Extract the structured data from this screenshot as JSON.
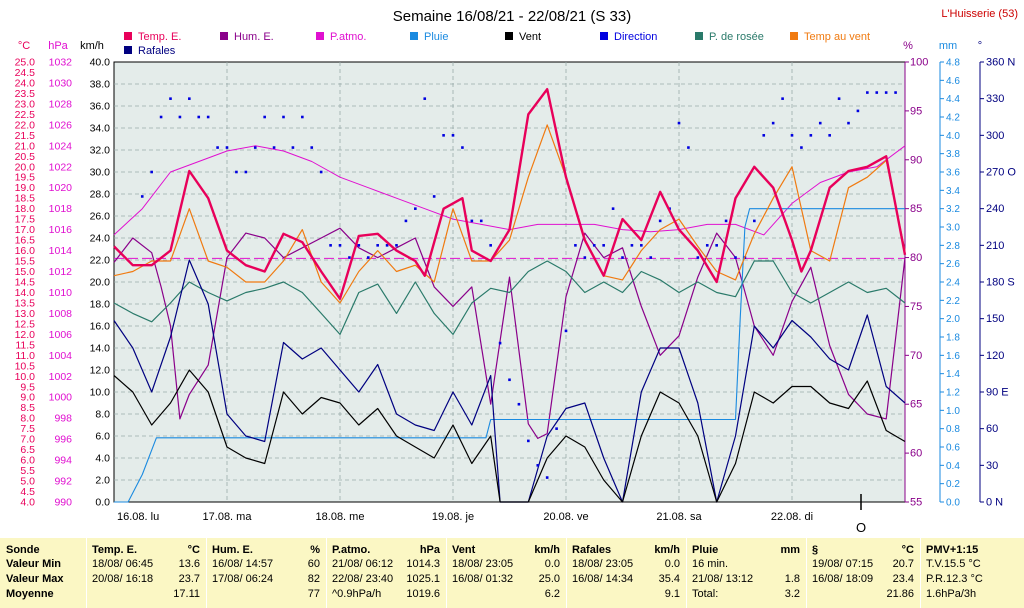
{
  "chart_data": {
    "type": "line",
    "title": "Semaine 16/08/21 - 22/08/21 (S 33)",
    "station": "L'Huisserie (53)",
    "legend": [
      {
        "name": "Temp. E.",
        "color": "#e8005a"
      },
      {
        "name": "Hum. E.",
        "color": "#8a008a"
      },
      {
        "name": "P.atmo.",
        "color": "#e010d0"
      },
      {
        "name": "Pluie",
        "color": "#1a8ae0"
      },
      {
        "name": "Vent",
        "color": "#000000"
      },
      {
        "name": "Direction",
        "color": "#0000e0"
      },
      {
        "name": "P. de rosée",
        "color": "#2a7a6a"
      },
      {
        "name": "Temp au vent",
        "color": "#f07a10"
      },
      {
        "name": "Rafales",
        "color": "#000080"
      }
    ],
    "axes": {
      "temp": {
        "unit": "°C",
        "min": 4.0,
        "max": 25.0,
        "step": 0.5,
        "color": "#e8005a",
        "ticks": [
          "25.0",
          "24.5",
          "24.0",
          "23.5",
          "23.0",
          "22.5",
          "22.0",
          "21.5",
          "21.0",
          "20.5",
          "20.0",
          "19.5",
          "19.0",
          "18.5",
          "18.0",
          "17.5",
          "17.0",
          "16.5",
          "16.0",
          "15.5",
          "15.0",
          "14.5",
          "14.0",
          "13.5",
          "13.0",
          "12.5",
          "12.0",
          "11.5",
          "11.0",
          "10.5",
          "10.0",
          "9.5",
          "9.0",
          "8.5",
          "8.0",
          "7.5",
          "7.0",
          "6.5",
          "6.0",
          "5.5",
          "5.0",
          "4.5",
          "4.0"
        ]
      },
      "pressure": {
        "unit": "hPa",
        "min": 990,
        "max": 1032,
        "color": "#e010d0",
        "ticks": [
          "1032",
          "1030",
          "1028",
          "1026",
          "1024",
          "1022",
          "1020",
          "1018",
          "1016",
          "1014",
          "1012",
          "1010",
          "1008",
          "1006",
          "1004",
          "1002",
          "1000",
          "998",
          "996",
          "994",
          "992",
          "990"
        ]
      },
      "wind": {
        "unit": "km/h",
        "min": 0,
        "max": 40,
        "color": "#000000",
        "ticks": [
          "40.0",
          "38.0",
          "36.0",
          "34.0",
          "32.0",
          "30.0",
          "28.0",
          "26.0",
          "24.0",
          "22.0",
          "20.0",
          "18.0",
          "16.0",
          "14.0",
          "12.0",
          "10.0",
          "8.0",
          "6.0",
          "4.0",
          "2.0",
          "0.0"
        ]
      },
      "humidity": {
        "unit": "%",
        "min": 55,
        "max": 100,
        "color": "#8a008a",
        "ticks": [
          "100",
          "95",
          "90",
          "85",
          "80",
          "75",
          "70",
          "65",
          "60",
          "55"
        ]
      },
      "rain": {
        "unit": "mm",
        "min": 0,
        "max": 4.8,
        "color": "#1a8ae0",
        "ticks": [
          "4.8",
          "4.6",
          "4.4",
          "4.2",
          "4.0",
          "3.8",
          "3.6",
          "3.4",
          "3.2",
          "3.0",
          "2.8",
          "2.6",
          "2.4",
          "2.2",
          "2.0",
          "1.8",
          "1.6",
          "1.4",
          "1.2",
          "1.0",
          "0.8",
          "0.6",
          "0.4",
          "0.2",
          "0.0"
        ]
      },
      "direction": {
        "unit": "°",
        "min": 0,
        "max": 360,
        "color": "#000080",
        "ticks": [
          "360 N",
          "330",
          "300",
          "270 O",
          "240",
          "210",
          "180 S",
          "150",
          "120",
          "90 E",
          "60",
          "30",
          "0 N"
        ]
      }
    },
    "x_days": [
      "16.08. lu",
      "17.08. ma",
      "18.08. me",
      "19.08. je",
      "20.08. ve",
      "21.08. sa",
      "22.08. di"
    ],
    "x_range_hours": [
      0,
      168
    ],
    "now_marker": "O",
    "reference_line_hpa": 1013.25,
    "series": [
      {
        "name": "Temp. E.",
        "axis": "temp",
        "x": [
          0,
          4,
          8,
          12,
          16,
          20,
          24,
          28,
          32,
          36,
          40,
          44,
          48,
          52,
          56,
          60,
          64,
          66,
          70,
          74,
          76,
          80,
          84,
          88,
          92,
          96,
          100,
          104,
          108,
          112,
          116,
          120,
          124,
          128,
          132,
          136,
          140,
          144,
          146,
          148,
          152,
          156,
          160,
          164,
          168
        ],
        "y": [
          16.2,
          15.3,
          15.3,
          16.0,
          19.8,
          18.5,
          16.0,
          15.3,
          15.0,
          16.8,
          16.4,
          15.0,
          13.7,
          16.7,
          16.8,
          16.0,
          15.5,
          14.8,
          18.0,
          18.5,
          16.0,
          15.5,
          17.0,
          22.5,
          23.7,
          19.5,
          16.5,
          14.8,
          17.5,
          16.5,
          18.8,
          17.0,
          16.0,
          14.5,
          18.5,
          20.0,
          19.0,
          16.5,
          15.0,
          16.0,
          19.0,
          19.8,
          20.0,
          20.5,
          15.8
        ]
      },
      {
        "name": "Temp au vent",
        "axis": "temp",
        "x": [
          0,
          4,
          8,
          12,
          16,
          20,
          24,
          28,
          32,
          36,
          40,
          44,
          48,
          52,
          56,
          60,
          64,
          68,
          72,
          76,
          80,
          84,
          88,
          92,
          96,
          100,
          104,
          108,
          112,
          116,
          120,
          124,
          128,
          132,
          136,
          140,
          144,
          148,
          152,
          156,
          160,
          164,
          168
        ],
        "y": [
          14.8,
          15.0,
          15.5,
          15.5,
          18.0,
          15.5,
          15.2,
          14.5,
          14.5,
          15.5,
          17.0,
          14.5,
          13.5,
          15.0,
          16.0,
          15.0,
          15.3,
          14.5,
          18.0,
          15.5,
          15.5,
          16.5,
          19.5,
          22.0,
          19.5,
          16.5,
          14.8,
          14.6,
          16.0,
          17.0,
          17.5,
          16.2,
          15.0,
          14.6,
          16.8,
          18.5,
          20.0,
          16.0,
          15.5,
          19.0,
          19.5,
          20.3,
          16.0
        ]
      },
      {
        "name": "P. de rosée",
        "axis": "temp",
        "x": [
          0,
          4,
          8,
          12,
          16,
          20,
          24,
          28,
          32,
          36,
          40,
          44,
          48,
          52,
          56,
          60,
          64,
          68,
          72,
          76,
          80,
          84,
          88,
          92,
          96,
          100,
          104,
          108,
          112,
          116,
          120,
          124,
          128,
          132,
          136,
          140,
          144,
          148,
          152,
          156,
          160,
          164,
          168
        ],
        "y": [
          13.5,
          13.0,
          12.6,
          13.5,
          14.5,
          14.0,
          13.6,
          14.0,
          14.2,
          14.5,
          14.0,
          13.0,
          12.0,
          14.0,
          14.4,
          13.0,
          14.5,
          13.0,
          12.0,
          13.5,
          14.2,
          14.0,
          15.0,
          15.5,
          15.0,
          14.0,
          14.5,
          14.0,
          15.0,
          14.6,
          14.0,
          14.5,
          14.0,
          13.8,
          15.5,
          15.5,
          14.0,
          13.5,
          14.0,
          14.5,
          14.0,
          14.2,
          13.5
        ]
      },
      {
        "name": "P.atmo.",
        "axis": "pressure",
        "x": [
          0,
          6,
          12,
          18,
          24,
          30,
          36,
          42,
          48,
          54,
          60,
          66,
          72,
          78,
          84,
          90,
          96,
          102,
          108,
          114,
          120,
          126,
          132,
          138,
          144,
          150,
          156,
          162,
          168
        ],
        "y": [
          1015.5,
          1018.0,
          1021.5,
          1022.5,
          1023.5,
          1024.0,
          1023.5,
          1022.5,
          1021.0,
          1020.0,
          1019.0,
          1018.0,
          1017.0,
          1016.5,
          1016.0,
          1016.5,
          1016.5,
          1016.5,
          1016.0,
          1015.8,
          1016.0,
          1016.5,
          1016.5,
          1015.5,
          1018.5,
          1020.5,
          1021.5,
          1022.0,
          1024.0
        ]
      },
      {
        "name": "Hum. E.",
        "axis": "humidity",
        "x": [
          0,
          4,
          8,
          10,
          12,
          14,
          16,
          20,
          24,
          28,
          32,
          36,
          40,
          44,
          48,
          52,
          56,
          60,
          64,
          68,
          72,
          76,
          80,
          84,
          88,
          90,
          92,
          96,
          100,
          104,
          108,
          112,
          116,
          120,
          124,
          128,
          132,
          136,
          140,
          144,
          148,
          152,
          156,
          160,
          164,
          168
        ],
        "y": [
          79.5,
          82.0,
          80.5,
          77.0,
          73.0,
          63.5,
          66.0,
          69.0,
          80.0,
          82.5,
          82.0,
          80.0,
          81.0,
          82.0,
          83.0,
          81.0,
          80.0,
          81.0,
          82.0,
          77.0,
          75.0,
          77.0,
          65.0,
          78.0,
          63.0,
          61.5,
          62.0,
          76.0,
          82.5,
          80.0,
          81.0,
          75.0,
          70.0,
          72.0,
          78.0,
          82.5,
          80.0,
          73.0,
          70.0,
          75.5,
          79.0,
          71.0,
          66.0,
          64.0,
          63.5,
          80.0
        ]
      },
      {
        "name": "Pluie",
        "axis": "rain",
        "x": [
          0,
          3,
          6,
          9,
          10,
          60,
          79,
          80,
          132,
          133,
          134,
          135,
          136,
          168
        ],
        "y": [
          0.0,
          0.0,
          0.3,
          0.7,
          0.7,
          0.7,
          0.7,
          0.9,
          0.9,
          2.0,
          3.0,
          3.2,
          3.2,
          3.2
        ]
      },
      {
        "name": "Vent",
        "axis": "wind",
        "x": [
          0,
          4,
          8,
          12,
          16,
          20,
          24,
          28,
          32,
          36,
          40,
          44,
          48,
          52,
          56,
          60,
          64,
          68,
          72,
          76,
          80,
          82,
          84,
          88,
          92,
          96,
          100,
          104,
          108,
          112,
          116,
          120,
          124,
          128,
          132,
          136,
          140,
          144,
          148,
          152,
          156,
          160,
          164,
          168
        ],
        "y": [
          11.5,
          10.0,
          7.0,
          9.0,
          12.0,
          10.0,
          5.0,
          4.0,
          3.5,
          10.0,
          8.0,
          9.5,
          9.0,
          7.0,
          8.5,
          6.0,
          5.0,
          4.0,
          7.0,
          3.5,
          6.0,
          0.0,
          0.0,
          0.0,
          4.0,
          6.0,
          5.0,
          2.0,
          0.0,
          6.0,
          10.0,
          9.0,
          6.0,
          0.0,
          3.5,
          10.0,
          9.0,
          10.5,
          10.5,
          9.0,
          8.5,
          11.0,
          6.5,
          5.5
        ]
      },
      {
        "name": "Rafales",
        "axis": "wind",
        "x": [
          0,
          4,
          8,
          12,
          16,
          20,
          24,
          28,
          32,
          36,
          40,
          44,
          48,
          52,
          56,
          60,
          64,
          68,
          72,
          76,
          80,
          82,
          84,
          88,
          92,
          96,
          100,
          104,
          108,
          112,
          116,
          120,
          124,
          128,
          132,
          136,
          140,
          144,
          148,
          152,
          156,
          160,
          164,
          168
        ],
        "y": [
          16.5,
          14.0,
          10.0,
          15.0,
          22.0,
          18.0,
          8.0,
          6.0,
          5.5,
          14.5,
          13.0,
          14.0,
          12.0,
          10.0,
          12.5,
          8.0,
          7.0,
          6.5,
          10.0,
          7.0,
          11.5,
          0.0,
          0.0,
          0.0,
          6.0,
          8.5,
          9.0,
          4.0,
          0.0,
          10.0,
          14.0,
          14.0,
          9.0,
          0.0,
          6.0,
          16.0,
          14.0,
          16.5,
          15.0,
          13.0,
          12.0,
          17.0,
          10.5,
          9.0
        ]
      },
      {
        "name": "Direction",
        "axis": "direction",
        "type": "scatter",
        "x": [
          6,
          8,
          10,
          12,
          14,
          16,
          18,
          20,
          22,
          24,
          26,
          28,
          30,
          32,
          34,
          36,
          38,
          40,
          42,
          44,
          46,
          48,
          50,
          52,
          54,
          56,
          58,
          60,
          62,
          64,
          66,
          68,
          70,
          72,
          74,
          76,
          78,
          80,
          82,
          84,
          86,
          88,
          90,
          92,
          94,
          96,
          98,
          100,
          102,
          104,
          106,
          108,
          110,
          112,
          114,
          116,
          118,
          120,
          122,
          124,
          126,
          128,
          130,
          132,
          134,
          136,
          138,
          140,
          142,
          144,
          146,
          148,
          150,
          152,
          154,
          156,
          158,
          160,
          162,
          164,
          166
        ],
        "y": [
          250,
          270,
          315,
          330,
          315,
          330,
          315,
          315,
          290,
          290,
          270,
          270,
          290,
          315,
          290,
          315,
          290,
          315,
          290,
          270,
          210,
          210,
          200,
          210,
          200,
          210,
          210,
          210,
          230,
          240,
          330,
          250,
          300,
          300,
          290,
          230,
          230,
          210,
          130,
          100,
          80,
          50,
          30,
          20,
          60,
          140,
          210,
          200,
          210,
          210,
          240,
          200,
          210,
          210,
          200,
          230,
          240,
          310,
          290,
          200,
          210,
          210,
          230,
          200,
          200,
          230,
          300,
          310,
          330,
          300,
          290,
          300,
          310,
          300,
          330,
          310,
          320,
          335,
          335,
          335,
          335
        ]
      }
    ]
  },
  "panel": {
    "columns": [
      {
        "title": "Sonde",
        "unit": "",
        "rows": [
          {
            "a": "Valeur Min"
          },
          {
            "a": "Valeur Max"
          },
          {
            "a": "Moyenne"
          }
        ]
      },
      {
        "title": "Temp. E.",
        "unit": "°C",
        "rows": [
          {
            "a": "18/08/ 06:45",
            "b": "13.6"
          },
          {
            "a": "20/08/ 16:18",
            "b": "23.7"
          },
          {
            "a": "",
            "b": "17.11"
          }
        ]
      },
      {
        "title": "Hum. E.",
        "unit": "%",
        "rows": [
          {
            "a": "16/08/ 14:57",
            "b": "60"
          },
          {
            "a": "17/08/ 06:24",
            "b": "82"
          },
          {
            "a": "",
            "b": "77"
          }
        ]
      },
      {
        "title": "P.atmo.",
        "unit": "hPa",
        "rows": [
          {
            "a": "21/08/ 06:12",
            "b": "1014.3"
          },
          {
            "a": "22/08/ 23:40",
            "b": "1025.1"
          },
          {
            "a": "^0.9hPa/h",
            "b": "1019.6"
          }
        ]
      },
      {
        "title": "Vent",
        "unit": "km/h",
        "rows": [
          {
            "a": "18/08/ 23:05",
            "b": "0.0"
          },
          {
            "a": "16/08/ 01:32",
            "b": "25.0"
          },
          {
            "a": "",
            "b": "6.2"
          }
        ]
      },
      {
        "title": "Rafales",
        "unit": "km/h",
        "rows": [
          {
            "a": "18/08/ 23:05",
            "b": "0.0"
          },
          {
            "a": "16/08/ 14:34",
            "b": "35.4"
          },
          {
            "a": "",
            "b": "9.1"
          }
        ]
      },
      {
        "title": "Pluie",
        "unit": "mm",
        "rows": [
          {
            "a": "16 min.",
            "b": ""
          },
          {
            "a": "21/08/ 13:12",
            "b": "1.8"
          },
          {
            "a": "Total:",
            "b": "3.2"
          }
        ]
      },
      {
        "title": "§",
        "unit": "°C",
        "rows": [
          {
            "a": "19/08/ 07:15",
            "b": "20.7"
          },
          {
            "a": "16/08/ 18:09",
            "b": "23.4"
          },
          {
            "a": "",
            "b": "21.86"
          }
        ]
      },
      {
        "title": "PMV+1:15",
        "unit": "",
        "rows": [
          {
            "a": "T.V.15.5 °C"
          },
          {
            "a": "P.R.12.3 °C"
          },
          {
            "a": "1.6hPa/3h"
          }
        ]
      }
    ]
  }
}
